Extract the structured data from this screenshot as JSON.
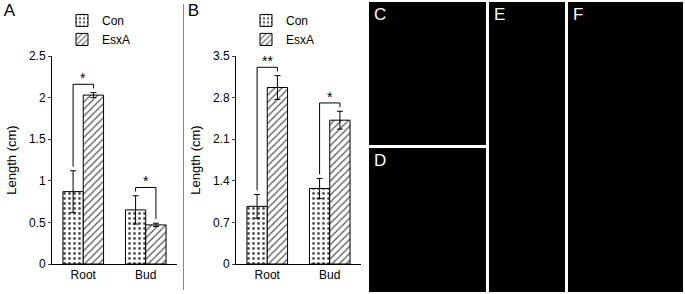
{
  "chart_data": [
    {
      "type": "bar",
      "title": "A",
      "y_label": "Length (cm)",
      "categories": [
        "Root",
        "Bud"
      ],
      "series": [
        {
          "name": "Con",
          "color": "#ffffff",
          "marker": "dots",
          "values": [
            0.87,
            0.65
          ],
          "error": [
            0.25,
            0.17
          ]
        },
        {
          "name": "EsxA",
          "color": "#ffffff",
          "marker": "hatch",
          "values": [
            2.03,
            0.47
          ],
          "error": [
            0.03,
            0.02
          ]
        }
      ],
      "ylim": [
        0,
        2.5
      ],
      "yticks": [
        0,
        0.5,
        1,
        1.5,
        2,
        2.5
      ],
      "annotations": [
        {
          "text": "*",
          "category": "Root"
        },
        {
          "text": "*",
          "category": "Bud"
        }
      ],
      "legend": "top"
    },
    {
      "type": "bar",
      "title": "B",
      "y_label": "Length (cm)",
      "categories": [
        "Root",
        "Bud"
      ],
      "series": [
        {
          "name": "Con",
          "color": "#ffffff",
          "marker": "dots",
          "values": [
            0.97,
            1.27
          ],
          "error": [
            0.2,
            0.17
          ]
        },
        {
          "name": "EsxA",
          "color": "#ffffff",
          "marker": "hatch",
          "values": [
            2.97,
            2.42
          ],
          "error": [
            0.2,
            0.15
          ]
        }
      ],
      "ylim": [
        0,
        3.5
      ],
      "yticks": [
        0,
        0.7,
        1.4,
        2.1,
        2.8,
        3.5
      ],
      "annotations": [
        {
          "text": "**",
          "category": "Root"
        },
        {
          "text": "*",
          "category": "Bud"
        }
      ],
      "legend": "top"
    }
  ],
  "image_panels": [
    {
      "label": "C"
    },
    {
      "label": "D"
    },
    {
      "label": "E"
    },
    {
      "label": "F"
    }
  ]
}
